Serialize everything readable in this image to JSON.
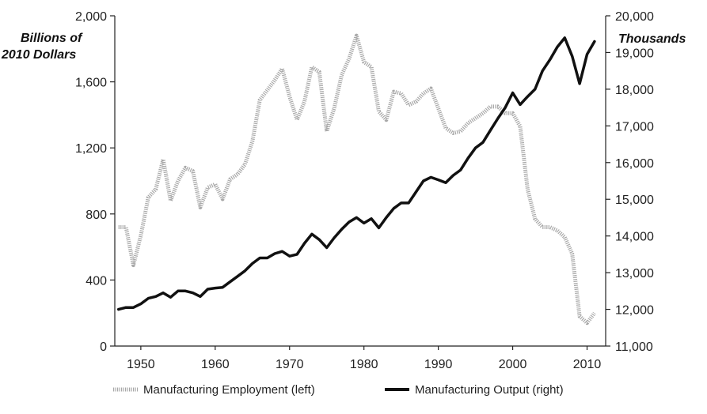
{
  "chart_data": {
    "type": "line",
    "title": "",
    "xlabel": "",
    "ylabel_left": [
      "Billions of",
      "2010 Dollars"
    ],
    "ylabel_right": "Thousands",
    "xlim": [
      1946.5,
      2012.5
    ],
    "ylim_left": [
      0,
      2000
    ],
    "ylim_right": [
      11000,
      20000
    ],
    "x_ticks": [
      1950,
      1960,
      1970,
      1980,
      1990,
      2000,
      2010
    ],
    "y_ticks_left": [
      "0",
      "400",
      "800",
      "1,200",
      "1,600",
      "2,000"
    ],
    "y_ticks_left_values": [
      0,
      400,
      800,
      1200,
      1600,
      2000
    ],
    "y_ticks_right": [
      "11,000",
      "12,000",
      "13,000",
      "14,000",
      "15,000",
      "16,000",
      "17,000",
      "18,000",
      "19,000",
      "20,000"
    ],
    "y_ticks_right_values": [
      11000,
      12000,
      13000,
      14000,
      15000,
      16000,
      17000,
      18000,
      19000,
      20000
    ],
    "grid": false,
    "legend_position": "bottom",
    "series": [
      {
        "name": "Manufacturing Employment (left)",
        "axis": "left",
        "color": "#a8a8a8",
        "x": [
          1947,
          1948,
          1949,
          1950,
          1951,
          1952,
          1953,
          1954,
          1955,
          1956,
          1957,
          1958,
          1959,
          1960,
          1961,
          1962,
          1963,
          1964,
          1965,
          1966,
          1967,
          1968,
          1969,
          1970,
          1971,
          1972,
          1973,
          1974,
          1975,
          1976,
          1977,
          1978,
          1979,
          1980,
          1981,
          1982,
          1983,
          1984,
          1985,
          1986,
          1987,
          1988,
          1989,
          1990,
          1991,
          1992,
          1993,
          1994,
          1995,
          1996,
          1997,
          1998,
          1999,
          2000,
          2001,
          2002,
          2003,
          2004,
          2005,
          2006,
          2007,
          2008,
          2009,
          2010,
          2011
        ],
        "values": [
          720,
          720,
          490,
          670,
          900,
          950,
          1130,
          880,
          1000,
          1080,
          1060,
          840,
          960,
          980,
          890,
          1010,
          1040,
          1100,
          1240,
          1490,
          1550,
          1610,
          1680,
          1510,
          1370,
          1480,
          1690,
          1660,
          1300,
          1440,
          1640,
          1740,
          1880,
          1720,
          1690,
          1420,
          1370,
          1540,
          1530,
          1460,
          1480,
          1530,
          1560,
          1440,
          1320,
          1290,
          1300,
          1350,
          1380,
          1410,
          1450,
          1450,
          1410,
          1410,
          1330,
          950,
          770,
          720,
          720,
          700,
          660,
          560,
          180,
          140,
          200
        ]
      },
      {
        "name": "Manufacturing Output (right)",
        "axis": "right",
        "color": "#111111",
        "x": [
          1947,
          1948,
          1949,
          1950,
          1951,
          1952,
          1953,
          1954,
          1955,
          1956,
          1957,
          1958,
          1959,
          1960,
          1961,
          1962,
          1963,
          1964,
          1965,
          1966,
          1967,
          1968,
          1969,
          1970,
          1971,
          1972,
          1973,
          1974,
          1975,
          1976,
          1977,
          1978,
          1979,
          1980,
          1981,
          1982,
          1983,
          1984,
          1985,
          1986,
          1987,
          1988,
          1989,
          1990,
          1991,
          1992,
          1993,
          1994,
          1995,
          1996,
          1997,
          1998,
          1999,
          2000,
          2001,
          2002,
          2003,
          2004,
          2005,
          2006,
          2007,
          2008,
          2009,
          2010,
          2011
        ],
        "values": [
          12000,
          12050,
          12050,
          12150,
          12300,
          12350,
          12450,
          12330,
          12500,
          12500,
          12450,
          12350,
          12550,
          12580,
          12600,
          12750,
          12900,
          13050,
          13250,
          13400,
          13400,
          13520,
          13580,
          13450,
          13500,
          13800,
          14050,
          13900,
          13680,
          13950,
          14180,
          14380,
          14500,
          14350,
          14470,
          14220,
          14500,
          14750,
          14900,
          14900,
          15200,
          15500,
          15600,
          15530,
          15450,
          15650,
          15800,
          16120,
          16400,
          16550,
          16880,
          17200,
          17500,
          17900,
          17580,
          17800,
          18000,
          18500,
          18800,
          19150,
          19400,
          18900,
          18150,
          18950,
          19300
        ]
      }
    ]
  }
}
